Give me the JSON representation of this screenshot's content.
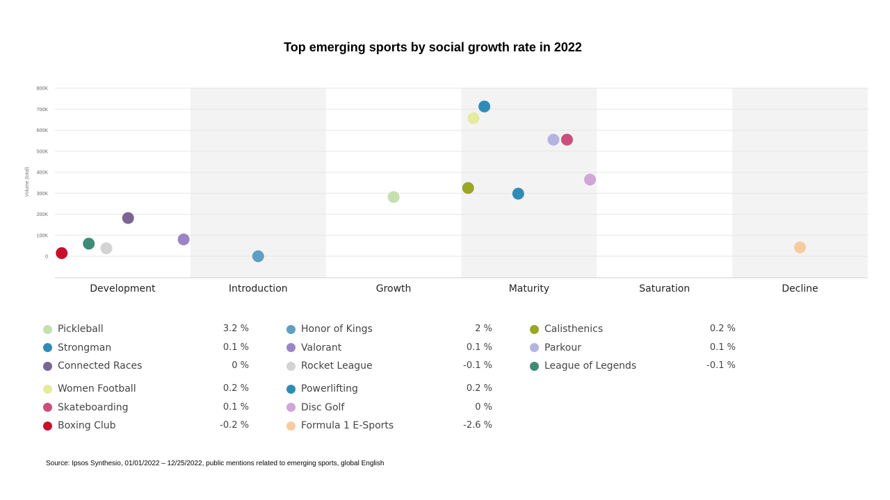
{
  "chart_data": {
    "type": "scatter",
    "title": "Top emerging sports by social growth rate in 2022",
    "ylabel": "Volume (total)",
    "xlabel": "",
    "ylim": [
      -100000,
      800000
    ],
    "yticks": [
      {
        "value": 800000,
        "label": "800K"
      },
      {
        "value": 700000,
        "label": "700K"
      },
      {
        "value": 600000,
        "label": "600K"
      },
      {
        "value": 500000,
        "label": "500K"
      },
      {
        "value": 400000,
        "label": "400K"
      },
      {
        "value": 300000,
        "label": "300K"
      },
      {
        "value": 200000,
        "label": "200K"
      },
      {
        "value": 100000,
        "label": "100K"
      },
      {
        "value": 0,
        "label": "0"
      }
    ],
    "stages": [
      "Development",
      "Introduction",
      "Growth",
      "Maturity",
      "Saturation",
      "Decline"
    ],
    "shaded_stages": [
      "Introduction",
      "Maturity",
      "Decline"
    ],
    "grid": true,
    "points": [
      {
        "name": "Boxing Club",
        "x": 0.05,
        "y": 15000,
        "color": "#c8102e"
      },
      {
        "name": "League of Legends",
        "x": 0.25,
        "y": 60000,
        "color": "#3e8b77"
      },
      {
        "name": "Rocket League",
        "x": 0.38,
        "y": 38000,
        "color": "#d3d3d3"
      },
      {
        "name": "Connected Races",
        "x": 0.54,
        "y": 182000,
        "color": "#7a6594"
      },
      {
        "name": "Valorant",
        "x": 0.95,
        "y": 80000,
        "color": "#9b86c4"
      },
      {
        "name": "Honor of Kings",
        "x": 1.5,
        "y": 0,
        "color": "#5e9fc4"
      },
      {
        "name": "Pickleball",
        "x": 2.5,
        "y": 282000,
        "color": "#c5e0b0"
      },
      {
        "name": "Calisthenics",
        "x": 3.05,
        "y": 325000,
        "color": "#9aa626"
      },
      {
        "name": "Women Football",
        "x": 3.09,
        "y": 657000,
        "color": "#e4ec9c"
      },
      {
        "name": "Strongman",
        "x": 3.17,
        "y": 713000,
        "color": "#2f8db5"
      },
      {
        "name": "Powerlifting",
        "x": 3.42,
        "y": 298000,
        "color": "#2f8db5"
      },
      {
        "name": "Parkour",
        "x": 3.68,
        "y": 555000,
        "color": "#b4b4df"
      },
      {
        "name": "Skateboarding",
        "x": 3.78,
        "y": 555000,
        "color": "#c94f7c"
      },
      {
        "name": "Disc Golf",
        "x": 3.95,
        "y": 365000,
        "color": "#d2a5d8"
      },
      {
        "name": "Formula 1 E-Sports",
        "x": 5.5,
        "y": 42000,
        "color": "#f7cba0"
      }
    ]
  },
  "legend": {
    "groups": [
      [
        {
          "name": "Pickleball",
          "value": "3.2 %",
          "color": "#c5e0b0"
        },
        {
          "name": "Strongman",
          "value": "0.1 %",
          "color": "#2f8db5"
        },
        {
          "name": "Connected Races",
          "value": "0 %",
          "color": "#7a6594"
        }
      ],
      [
        {
          "name": "Honor of Kings",
          "value": "2 %",
          "color": "#5e9fc4"
        },
        {
          "name": "Valorant",
          "value": "0.1 %",
          "color": "#9b86c4"
        },
        {
          "name": "Rocket League",
          "value": "-0.1 %",
          "color": "#d3d3d3"
        }
      ],
      [
        {
          "name": "Calisthenics",
          "value": "0.2 %",
          "color": "#9aa626"
        },
        {
          "name": "Parkour",
          "value": "0.1 %",
          "color": "#b4b4df"
        },
        {
          "name": "League of Legends",
          "value": "-0.1 %",
          "color": "#3e8b77"
        }
      ],
      [
        {
          "name": "Women Football",
          "value": "0.2 %",
          "color": "#e4ec9c"
        },
        {
          "name": "Skateboarding",
          "value": "0.1 %",
          "color": "#c94f7c"
        },
        {
          "name": "Boxing Club",
          "value": "-0.2 %",
          "color": "#c8102e"
        }
      ],
      [
        {
          "name": "Powerlifting",
          "value": "0.2 %",
          "color": "#2f8db5"
        },
        {
          "name": "Disc Golf",
          "value": "0 %",
          "color": "#d2a5d8"
        },
        {
          "name": "Formula 1 E-Sports",
          "value": "-2.6 %",
          "color": "#f7cba0"
        }
      ]
    ]
  },
  "source": "Source: Ipsos Synthesio, 01/01/2022 – 12/25/2022, public mentions related to emerging sports, global English"
}
